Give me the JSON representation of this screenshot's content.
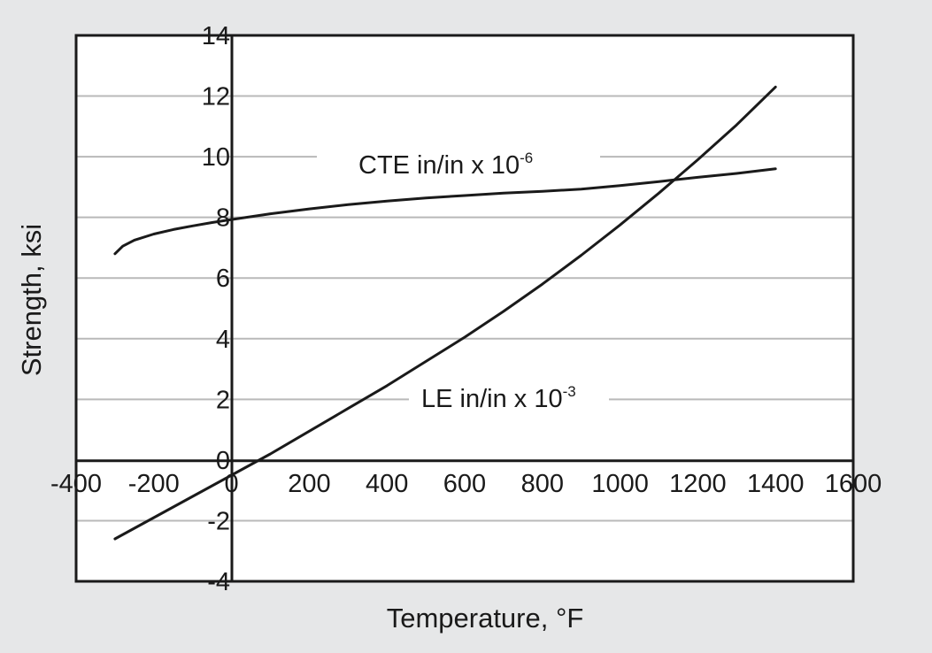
{
  "chart_data": {
    "type": "line",
    "title": "",
    "xlabel": "Temperature, °F",
    "ylabel": "Strength, ksi",
    "xlim": [
      -400,
      1600
    ],
    "ylim": [
      -4,
      14
    ],
    "x_ticks": [
      "-400",
      "-200",
      "0",
      "200",
      "400",
      "600",
      "800",
      "1000",
      "1200",
      "1400",
      "1600"
    ],
    "y_ticks": [
      "14",
      "12",
      "10",
      "8",
      "6",
      "4",
      "2",
      "0",
      "-2",
      "-4"
    ],
    "grid": "horizontal",
    "legend": "none",
    "series": [
      {
        "name": "CTE in/in x 10-6",
        "label_base": "CTE in/in x 10",
        "label_exp": "-6",
        "color": "#1a1a1a",
        "x": [
          -300,
          -280,
          -250,
          -200,
          -150,
          -100,
          -50,
          0,
          100,
          200,
          300,
          400,
          500,
          600,
          700,
          800,
          900,
          1000,
          1100,
          1200,
          1300,
          1400
        ],
        "y": [
          6.8,
          7.05,
          7.25,
          7.45,
          7.6,
          7.72,
          7.83,
          7.93,
          8.12,
          8.28,
          8.42,
          8.54,
          8.64,
          8.72,
          8.8,
          8.86,
          8.93,
          9.05,
          9.18,
          9.32,
          9.45,
          9.6
        ]
      },
      {
        "name": "LE in/in x 10-3",
        "label_base": "LE in/in x 10",
        "label_exp": "-3",
        "color": "#1a1a1a",
        "x": [
          -300,
          -200,
          -100,
          0,
          100,
          200,
          300,
          400,
          500,
          600,
          700,
          800,
          900,
          1000,
          1100,
          1200,
          1300,
          1400
        ],
        "y": [
          -2.6,
          -1.9,
          -1.2,
          -0.5,
          0.2,
          0.95,
          1.7,
          2.45,
          3.25,
          4.05,
          4.9,
          5.8,
          6.75,
          7.75,
          8.8,
          9.9,
          11.05,
          12.3
        ]
      }
    ]
  }
}
